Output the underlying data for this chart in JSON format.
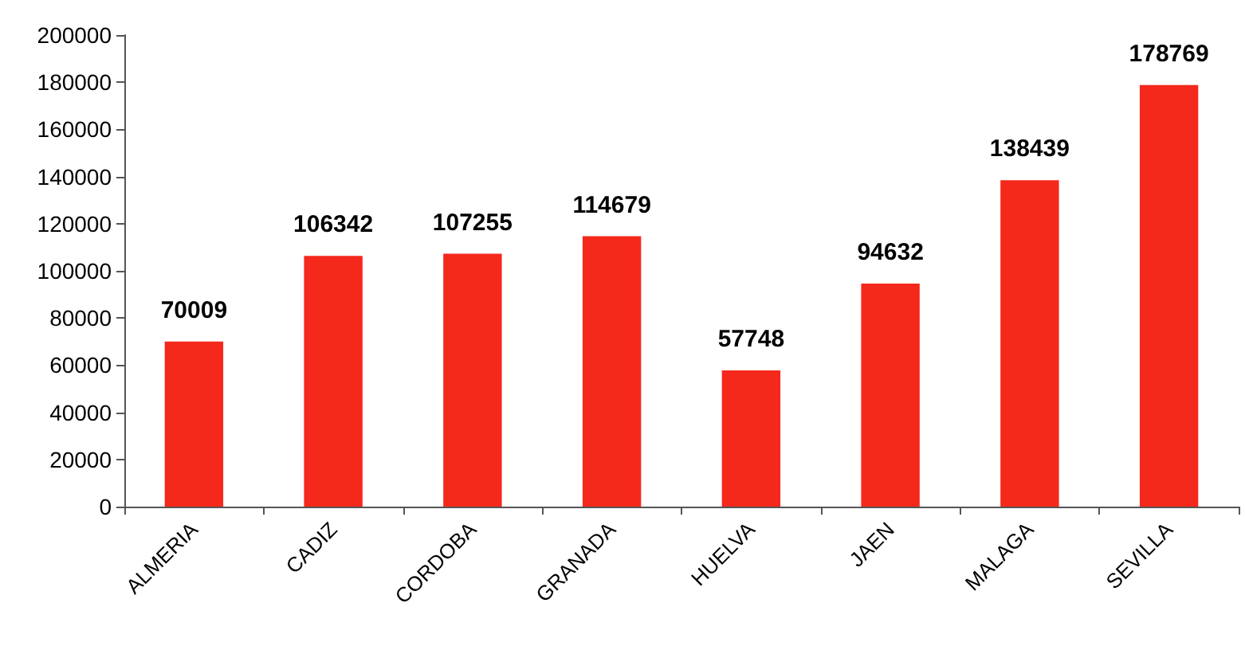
{
  "chart_data": {
    "type": "bar",
    "categories": [
      "ALMERIA",
      "CADIZ",
      "CORDOBA",
      "GRANADA",
      "HUELVA",
      "JAEN",
      "MALAGA",
      "SEVILLA"
    ],
    "values": [
      70009,
      106342,
      107255,
      114679,
      57748,
      94632,
      138439,
      178769
    ],
    "color": "#f5281c",
    "ylim": [
      0,
      200000
    ],
    "yticks": [
      0,
      20000,
      40000,
      60000,
      80000,
      100000,
      120000,
      140000,
      160000,
      180000,
      200000
    ],
    "data_labels": true,
    "grid": false
  }
}
